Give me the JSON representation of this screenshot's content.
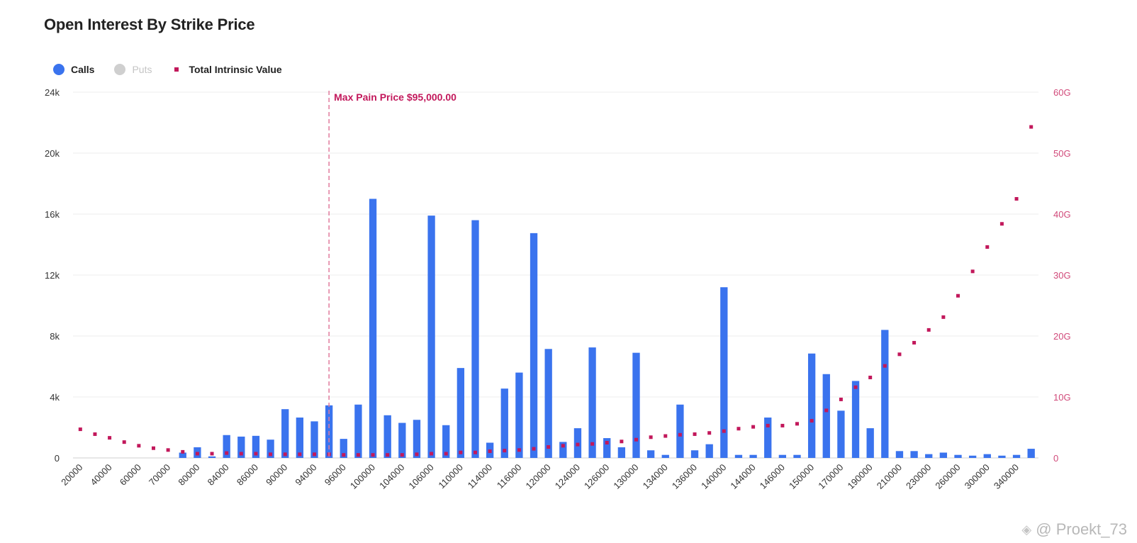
{
  "colors": {
    "calls": "#3a73ee",
    "puts": "#cfcfcf",
    "intrinsic": "#c2185b",
    "grid": "#eeeeee",
    "axis_left": "#333333",
    "axis_right": "#d14a7a"
  },
  "legend": {
    "calls_label": "Calls",
    "puts_label": "Puts",
    "intrinsic_label": "Total Intrinsic Value"
  },
  "watermark": {
    "icon": "diamond-logo-icon",
    "text": "@ Proekt_73"
  },
  "chart_data": {
    "type": "bar",
    "title": "Open Interest By Strike Price",
    "y_left": {
      "ticks": [
        "0",
        "4k",
        "8k",
        "12k",
        "16k",
        "20k",
        "24k"
      ],
      "range": [
        0,
        24000
      ]
    },
    "y_right": {
      "ticks": [
        "0",
        "10G",
        "20G",
        "30G",
        "40G",
        "50G",
        "60G"
      ],
      "range": [
        0,
        60
      ]
    },
    "x_tick_labels": [
      "20000",
      "40000",
      "60000",
      "70000",
      "80000",
      "84000",
      "86000",
      "90000",
      "94000",
      "96000",
      "100000",
      "104000",
      "106000",
      "110000",
      "114000",
      "116000",
      "120000",
      "124000",
      "126000",
      "130000",
      "134000",
      "136000",
      "140000",
      "144000",
      "146000",
      "150000",
      "170000",
      "190000",
      "210000",
      "230000",
      "260000",
      "300000",
      "340000"
    ],
    "x_tick_every": 2,
    "annotation": {
      "label": "Max Pain Price $95,000.00",
      "category_index": 17
    },
    "series": [
      {
        "name": "Calls",
        "type": "bar",
        "values": [
          0,
          0,
          0,
          0,
          0,
          0,
          0,
          350,
          700,
          100,
          1500,
          1400,
          1450,
          1200,
          3200,
          2650,
          2400,
          3450,
          1250,
          3500,
          17000,
          2800,
          2300,
          2500,
          15900,
          2150,
          5900,
          15600,
          1000,
          4550,
          5600,
          14750,
          7150,
          1050,
          1950,
          7250,
          1300,
          700,
          6900,
          500,
          200,
          3500,
          500,
          900,
          11200,
          200,
          200,
          2650,
          200,
          200,
          6850,
          5500,
          3100,
          5050,
          1950,
          8400,
          450,
          450,
          250,
          350,
          200,
          150,
          250,
          150,
          200,
          600
        ]
      },
      {
        "name": "Puts",
        "type": "bar",
        "hidden": true,
        "values": []
      },
      {
        "name": "Total Intrinsic Value",
        "type": "scatter",
        "values": [
          4.7,
          3.9,
          3.3,
          2.6,
          2.0,
          1.6,
          1.3,
          1.0,
          0.7,
          0.7,
          0.8,
          0.7,
          0.7,
          0.6,
          0.6,
          0.6,
          0.6,
          0.6,
          0.5,
          0.5,
          0.5,
          0.5,
          0.5,
          0.6,
          0.7,
          0.7,
          0.9,
          0.9,
          1.1,
          1.2,
          1.3,
          1.5,
          1.8,
          2.0,
          2.2,
          2.3,
          2.5,
          2.7,
          3.0,
          3.4,
          3.6,
          3.8,
          3.9,
          4.1,
          4.4,
          4.8,
          5.1,
          5.3,
          5.3,
          5.6,
          6.1,
          7.8,
          9.6,
          11.6,
          13.2,
          15.1,
          17.0,
          18.9,
          21.0,
          23.1,
          26.6,
          30.6,
          34.6,
          38.4,
          42.5,
          54.3
        ]
      }
    ]
  }
}
